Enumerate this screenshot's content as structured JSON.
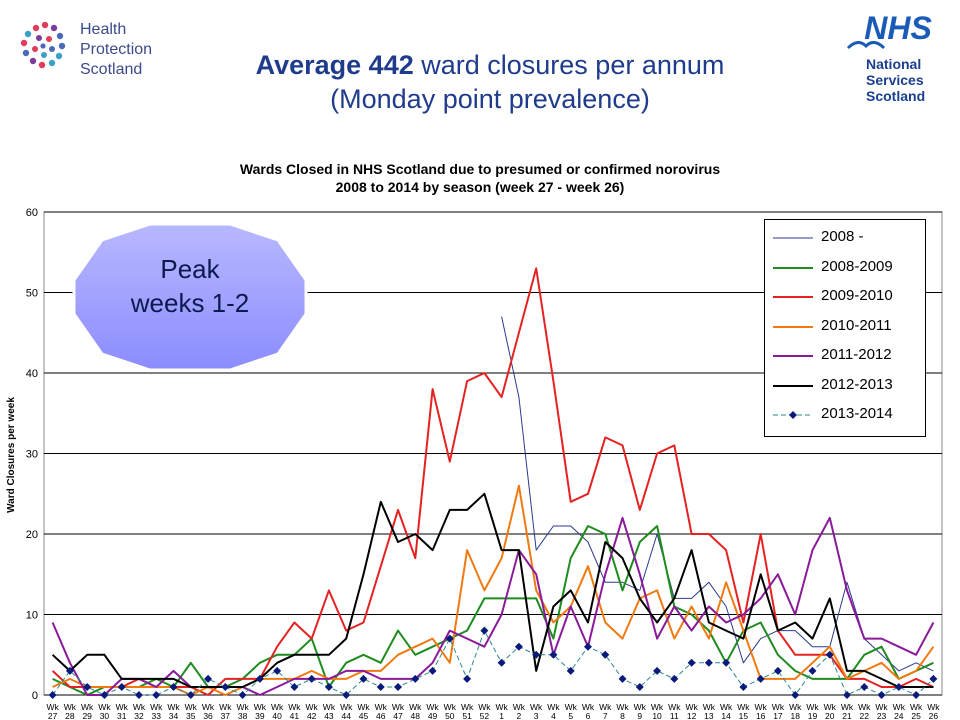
{
  "header": {
    "hps_lines": [
      "Health",
      "Protection",
      "Scotland"
    ],
    "nhs_badge": "NHS",
    "nhs_lines": [
      "National",
      "Services",
      "Scotland"
    ],
    "title_bold": "Average 442",
    "title_rest": " ward closures per annum",
    "subtitle": "(Monday point prevalence)"
  },
  "callout": {
    "lines": [
      "Peak",
      "weeks 1-2"
    ],
    "color": "#9999ff"
  },
  "chart_data": {
    "type": "line",
    "title_lines": [
      "Wards Closed in NHS Scotland due to presumed or confirmed norovirus",
      "2008 to 2014 by season (week 27 - week 26)"
    ],
    "ylabel": "Ward Closures per week",
    "xlabel": "",
    "ylim": [
      0,
      60
    ],
    "yticks": [
      0,
      10,
      20,
      30,
      40,
      50,
      60
    ],
    "grid": true,
    "legend_position": "top-right",
    "x_prefix": "Wk",
    "x": [
      27,
      28,
      29,
      30,
      31,
      32,
      33,
      34,
      35,
      36,
      37,
      38,
      39,
      40,
      41,
      42,
      43,
      44,
      45,
      46,
      47,
      48,
      49,
      50,
      51,
      52,
      1,
      2,
      3,
      4,
      5,
      6,
      7,
      8,
      9,
      10,
      11,
      12,
      13,
      14,
      15,
      16,
      17,
      18,
      19,
      20,
      21,
      22,
      23,
      24,
      25,
      26
    ],
    "series": [
      {
        "name": "2008 -",
        "color": "#2b3a8f",
        "width": 1,
        "dash": "",
        "marker": false,
        "values": [
          null,
          null,
          null,
          null,
          null,
          null,
          null,
          null,
          null,
          null,
          null,
          null,
          null,
          null,
          null,
          null,
          null,
          null,
          null,
          null,
          null,
          null,
          null,
          null,
          null,
          null,
          47,
          37,
          18,
          21,
          21,
          19,
          14,
          14,
          13,
          20,
          12,
          12,
          14,
          11,
          4,
          7,
          8,
          8,
          6,
          6,
          14,
          7,
          5,
          3,
          4,
          3
        ]
      },
      {
        "name": "2008-2009",
        "color": "#1e8c1e",
        "width": 2,
        "dash": "",
        "marker": false,
        "values": [
          2,
          1,
          0,
          1,
          1,
          1,
          2,
          1,
          4,
          1,
          1,
          2,
          4,
          5,
          5,
          7,
          1,
          4,
          5,
          4,
          8,
          5,
          6,
          7,
          8,
          12,
          12,
          12,
          12,
          7,
          17,
          21,
          20,
          13,
          19,
          21,
          11,
          10,
          8,
          4,
          8,
          9,
          5,
          3,
          2,
          2,
          2,
          5,
          6,
          2,
          3,
          4
        ]
      },
      {
        "name": "2009-2010",
        "color": "#e52222",
        "width": 2,
        "dash": "",
        "marker": false,
        "values": [
          3,
          1,
          1,
          1,
          1,
          2,
          1,
          1,
          1,
          0,
          2,
          2,
          2,
          6,
          9,
          7,
          13,
          8,
          9,
          16,
          23,
          17,
          38,
          29,
          39,
          40,
          37,
          45,
          53,
          39,
          24,
          25,
          32,
          31,
          23,
          30,
          31,
          20,
          20,
          18,
          9,
          20,
          8,
          5,
          5,
          5,
          2,
          2,
          1,
          1,
          2,
          1
        ]
      },
      {
        "name": "2010-2011",
        "color": "#f07a10",
        "width": 2,
        "dash": "",
        "marker": false,
        "values": [
          1,
          2,
          1,
          1,
          1,
          1,
          1,
          1,
          0,
          1,
          0,
          1,
          2,
          2,
          2,
          3,
          2,
          2,
          3,
          3,
          5,
          6,
          7,
          4,
          18,
          13,
          17,
          26,
          13,
          9,
          11,
          16,
          9,
          7,
          12,
          13,
          7,
          11,
          7,
          14,
          8,
          2,
          2,
          2,
          4,
          6,
          2,
          3,
          4,
          2,
          3,
          6
        ]
      },
      {
        "name": "2011-2012",
        "color": "#8a1a9a",
        "width": 2,
        "dash": "",
        "marker": false,
        "values": [
          9,
          4,
          0,
          0,
          2,
          2,
          1,
          3,
          1,
          1,
          1,
          1,
          0,
          1,
          2,
          2,
          2,
          3,
          3,
          2,
          2,
          2,
          4,
          8,
          7,
          6,
          10,
          18,
          15,
          5,
          11,
          6,
          15,
          22,
          15,
          7,
          11,
          8,
          11,
          9,
          10,
          12,
          15,
          10,
          18,
          22,
          13,
          7,
          7,
          6,
          5,
          9
        ]
      },
      {
        "name": "2012-2013",
        "color": "#000000",
        "width": 2,
        "dash": "",
        "marker": false,
        "values": [
          5,
          3,
          5,
          5,
          2,
          2,
          2,
          2,
          1,
          1,
          1,
          1,
          2,
          4,
          5,
          5,
          5,
          7,
          15,
          24,
          19,
          20,
          18,
          23,
          23,
          25,
          18,
          18,
          3,
          11,
          13,
          9,
          19,
          17,
          12,
          9,
          12,
          18,
          9,
          8,
          7,
          15,
          8,
          9,
          7,
          12,
          3,
          3,
          2,
          1,
          1,
          1
        ]
      },
      {
        "name": "2013-2014",
        "color": "#2a8a8a",
        "width": 1,
        "dash": "5,3",
        "marker": true,
        "marker_color": "#0a1a7a",
        "values": [
          0,
          3,
          1,
          0,
          1,
          0,
          0,
          1,
          0,
          2,
          1,
          0,
          2,
          3,
          1,
          2,
          1,
          0,
          2,
          1,
          1,
          2,
          3,
          7,
          2,
          8,
          4,
          6,
          5,
          5,
          3,
          6,
          5,
          2,
          1,
          3,
          2,
          4,
          4,
          4,
          1,
          2,
          3,
          0,
          3,
          5,
          0,
          1,
          0,
          1,
          0,
          2
        ]
      }
    ]
  }
}
